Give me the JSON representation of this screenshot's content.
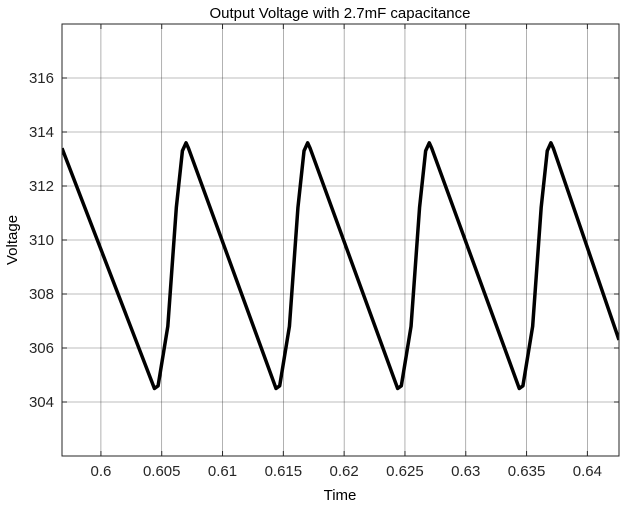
{
  "chart_data": {
    "type": "line",
    "title": "Output Voltage with 2.7mF capacitance",
    "xlabel": "Time",
    "ylabel": "Voltage",
    "xlim": [
      0.5968,
      0.6426
    ],
    "ylim": [
      302.0,
      318.0
    ],
    "xticks": [
      0.6,
      0.605,
      0.61,
      0.615,
      0.62,
      0.625,
      0.63,
      0.635,
      0.64
    ],
    "xtick_labels": [
      "0.6",
      "0.605",
      "0.61",
      "0.615",
      "0.62",
      "0.625",
      "0.63",
      "0.635",
      "0.64"
    ],
    "yticks": [
      304,
      306,
      308,
      310,
      312,
      314,
      316
    ],
    "ytick_labels": [
      "304",
      "306",
      "308",
      "310",
      "312",
      "314",
      "316"
    ],
    "grid": true,
    "series": [
      {
        "name": "",
        "color": "#000000",
        "x": [
          0.5968,
          0.6044,
          0.6047,
          0.6055,
          0.6062,
          0.6067,
          0.607,
          0.6072,
          0.6144,
          0.6147,
          0.6155,
          0.6162,
          0.6167,
          0.617,
          0.6172,
          0.6244,
          0.6247,
          0.6255,
          0.6262,
          0.6267,
          0.627,
          0.6272,
          0.6344,
          0.6347,
          0.6355,
          0.6362,
          0.6367,
          0.637,
          0.6372,
          0.6426
        ],
        "y": [
          313.4,
          304.5,
          304.6,
          306.8,
          311.2,
          313.3,
          313.6,
          313.4,
          304.5,
          304.6,
          306.8,
          311.2,
          313.3,
          313.6,
          313.4,
          304.5,
          304.6,
          306.8,
          311.2,
          313.3,
          313.6,
          313.4,
          304.5,
          304.6,
          306.8,
          311.2,
          313.3,
          313.6,
          313.4,
          306.3
        ]
      }
    ]
  }
}
